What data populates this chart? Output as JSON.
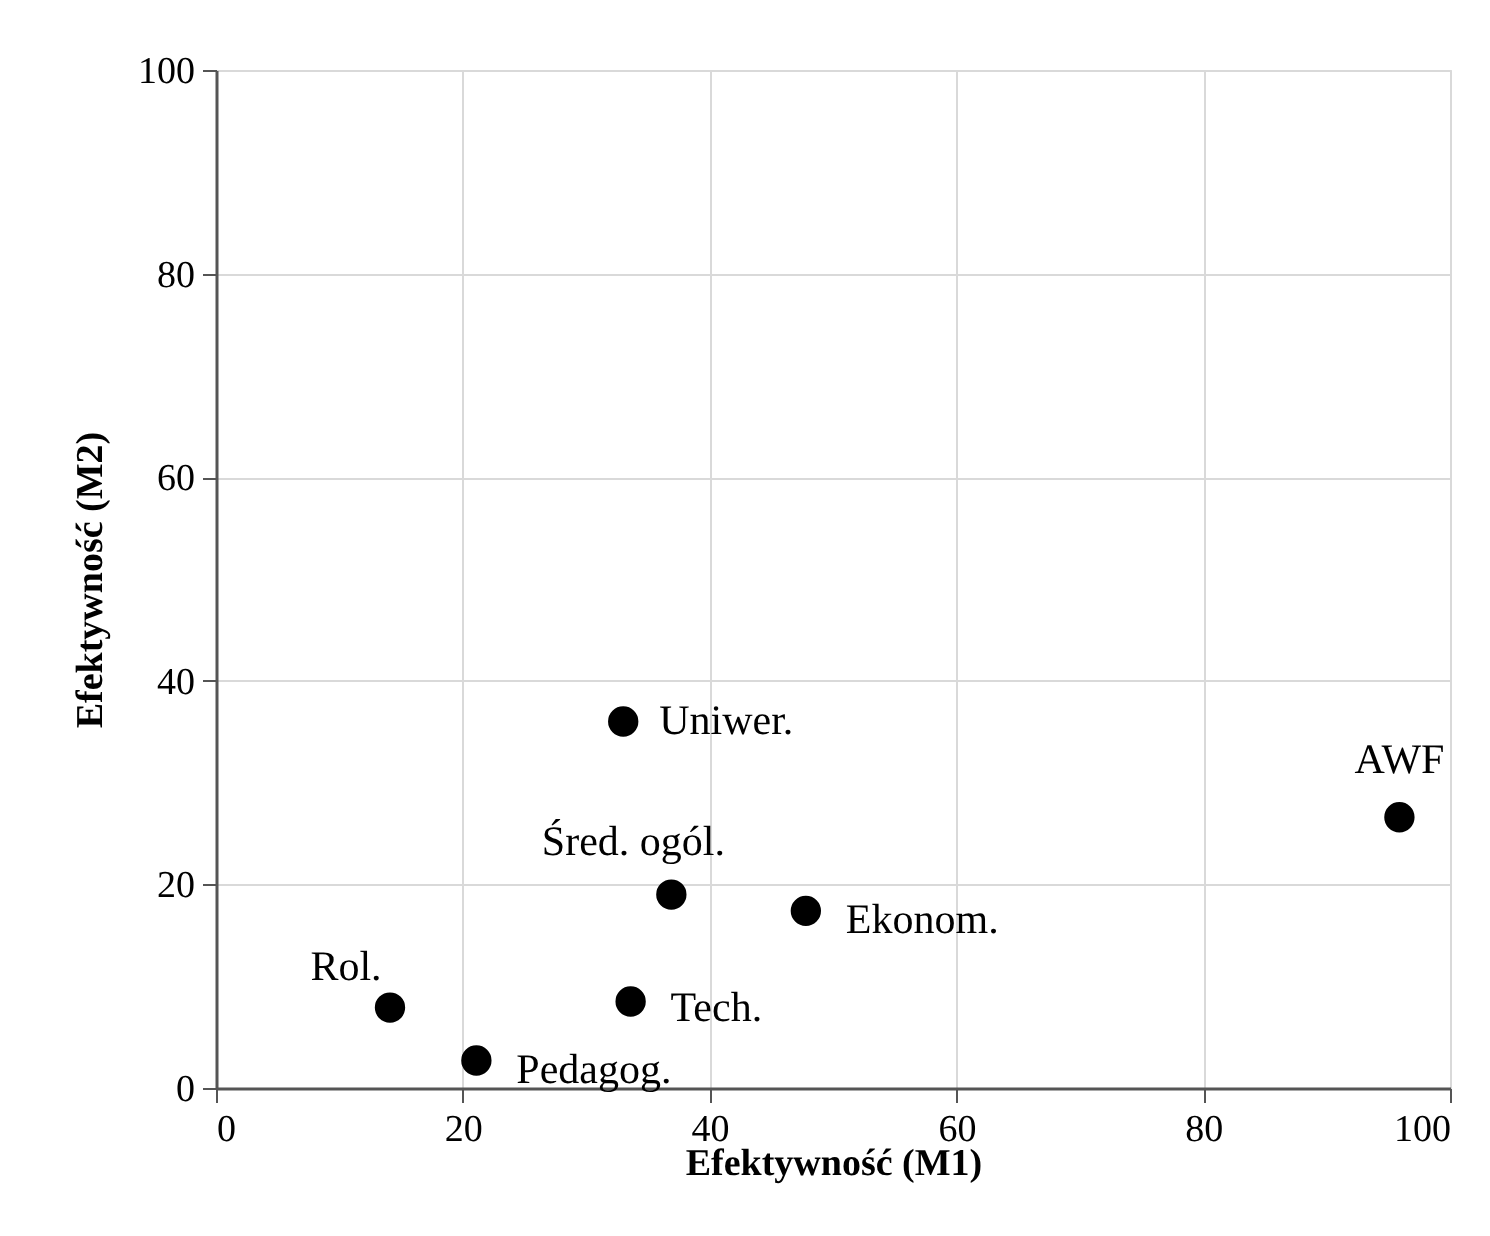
{
  "chart_data": {
    "type": "scatter",
    "xlabel": "Efektywność (M1)",
    "ylabel": "Efektywność (M2)",
    "x": [
      33.0,
      95.9,
      36.9,
      47.8,
      14.1,
      33.6,
      21.1
    ],
    "values": [
      36.0,
      26.6,
      19.0,
      17.4,
      7.9,
      8.5,
      2.7
    ],
    "color": "#000000",
    "marker": "circle",
    "annotations": [
      {
        "text": "Uniwer.",
        "x": 33.0,
        "y": 36.0
      },
      {
        "text": "AWF",
        "x": 95.9,
        "y": 26.6
      },
      {
        "text": "Śred. ogól.",
        "x": 36.9,
        "y": 19.0
      },
      {
        "text": "Ekonom.",
        "x": 47.8,
        "y": 17.4
      },
      {
        "text": "Rol.",
        "x": 14.1,
        "y": 7.9
      },
      {
        "text": "Tech.",
        "x": 33.6,
        "y": 8.5
      },
      {
        "text": "Pedagog.",
        "x": 21.1,
        "y": 2.7
      }
    ],
    "xlim": [
      0,
      100
    ],
    "xticks": [
      0,
      20,
      40,
      60,
      80,
      100
    ],
    "ylim": [
      0,
      100
    ],
    "yticks": [
      0,
      20,
      40,
      60,
      80,
      100
    ],
    "grid": true
  }
}
